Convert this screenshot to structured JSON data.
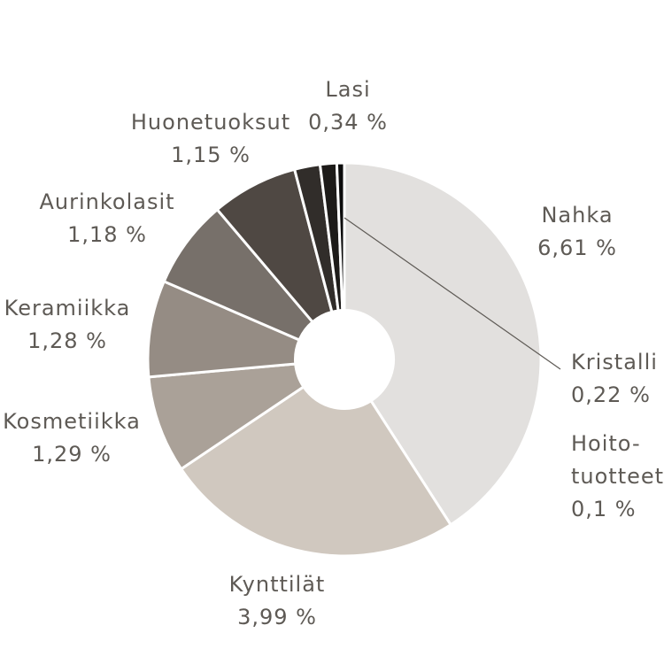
{
  "chart_data": {
    "type": "pie",
    "title": "",
    "start": "top",
    "direction": "clockwise",
    "inner_radius_ratio": 0.25,
    "slices": [
      {
        "label": "Nahka",
        "display_value": "6,61 %",
        "value": 6.61,
        "color": "#e2e0de"
      },
      {
        "label": "Kynttilät",
        "display_value": "3,99 %",
        "value": 3.99,
        "color": "#d0c8bf"
      },
      {
        "label": "Kosmetiikka",
        "display_value": "1,29 %",
        "value": 1.29,
        "color": "#aaa198"
      },
      {
        "label": "Keramiikka",
        "display_value": "1,28 %",
        "value": 1.28,
        "color": "#958c84"
      },
      {
        "label": "Aurinkolasit",
        "display_value": "1,18 %",
        "value": 1.18,
        "color": "#77706a"
      },
      {
        "label": "Huonetuoksut",
        "display_value": "1,15 %",
        "value": 1.15,
        "color": "#4f4843"
      },
      {
        "label": "Lasi",
        "display_value": "0,34 %",
        "value": 0.34,
        "color": "#312d2a"
      },
      {
        "label": "Kristalli",
        "display_value": "0,22 %",
        "value": 0.22,
        "color": "#1d1b19"
      },
      {
        "label": "Hoito-\ntuotteet",
        "display_value": "0,1 %",
        "value": 0.1,
        "color": "#0c0c0c"
      }
    ]
  }
}
